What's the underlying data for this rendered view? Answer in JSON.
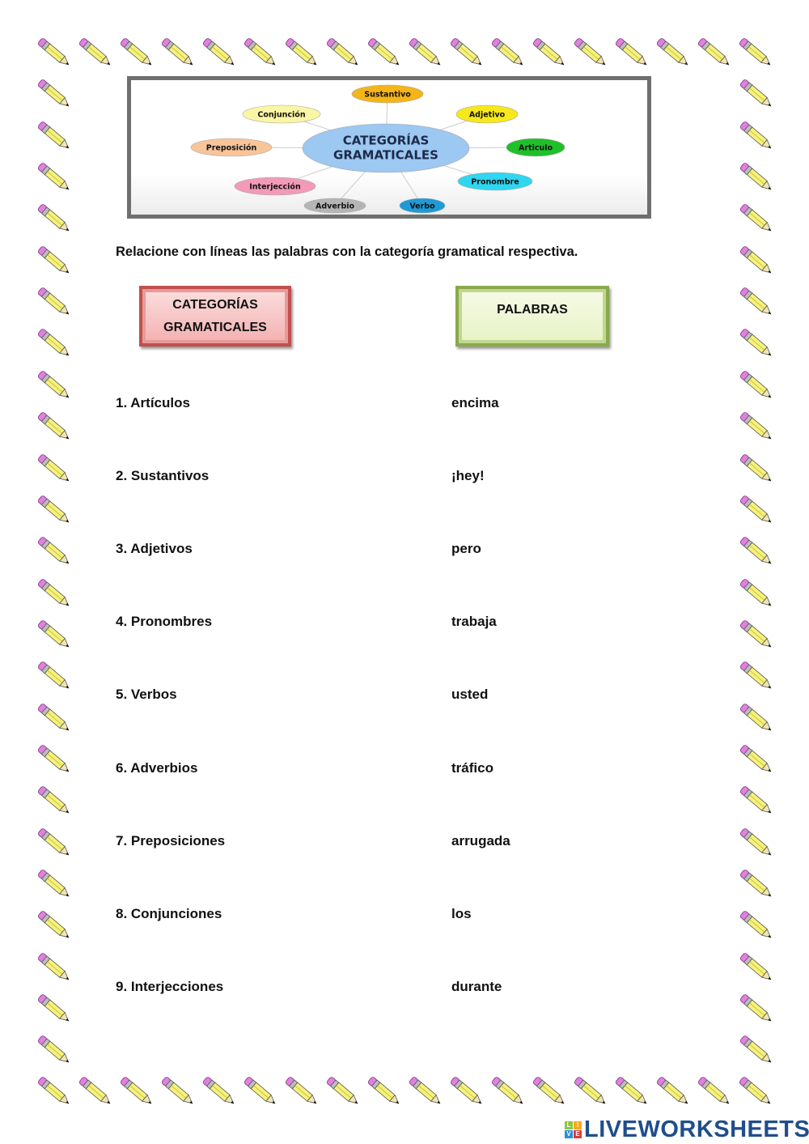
{
  "diagram": {
    "center": [
      "CATEGORÍAS",
      "GRAMATICALES"
    ],
    "nodes": [
      {
        "label": "Sustantivo",
        "color": "#f5b417"
      },
      {
        "label": "Adjetivo",
        "color": "#f6e81a"
      },
      {
        "label": "Articulo",
        "color": "#1fc02a"
      },
      {
        "label": "Pronombre",
        "color": "#2fd6ef"
      },
      {
        "label": "Verbo",
        "color": "#1e9ad8"
      },
      {
        "label": "Adverbio",
        "color": "#b5b5b5"
      },
      {
        "label": "Interjección",
        "color": "#f29ab8"
      },
      {
        "label": "Preposición",
        "color": "#f8c49a"
      },
      {
        "label": "Conjunción",
        "color": "#fbf6a4"
      }
    ]
  },
  "instruction": "Relacione con líneas las palabras con la categoría gramatical respectiva.",
  "headers": {
    "categories": "CATEGORÍAS GRAMATICALES",
    "words": "PALABRAS"
  },
  "categories": [
    "1. Artículos",
    "2. Sustantivos",
    "3. Adjetivos",
    "4. Pronombres",
    "5. Verbos",
    "6. Adverbios",
    "7. Preposiciones",
    "8. Conjunciones",
    "9. Interjecciones"
  ],
  "words": [
    "encima",
    "¡hey!",
    "pero",
    "trabaja",
    "usted",
    "tráfico",
    "arrugada",
    "los",
    "durante"
  ],
  "logo": {
    "text": "LIVEWORKSHEETS",
    "cube": [
      "L",
      "I",
      "V",
      "E"
    ]
  }
}
